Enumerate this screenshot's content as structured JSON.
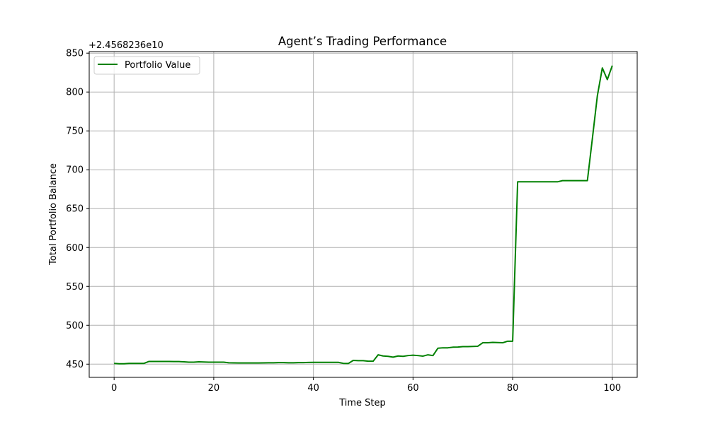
{
  "chart_data": {
    "type": "line",
    "title": "Agent’s Trading Performance",
    "xlabel": "Time Step",
    "ylabel": "Total Portfolio Balance",
    "y_offset_text": "+2.4568236e10",
    "xlim": [
      -5,
      105
    ],
    "ylim": [
      433,
      852
    ],
    "xticks": [
      0,
      20,
      40,
      60,
      80,
      100
    ],
    "yticks": [
      450,
      500,
      550,
      600,
      650,
      700,
      750,
      800,
      850
    ],
    "grid": true,
    "legend_position": "upper-left",
    "series": [
      {
        "name": "Portfolio Value",
        "color": "#008000",
        "x": [
          0,
          1,
          2,
          3,
          4,
          5,
          6,
          7,
          8,
          9,
          10,
          11,
          12,
          13,
          14,
          15,
          16,
          17,
          18,
          19,
          20,
          21,
          22,
          23,
          24,
          25,
          26,
          27,
          28,
          29,
          30,
          31,
          32,
          33,
          34,
          35,
          36,
          37,
          38,
          39,
          40,
          41,
          42,
          43,
          44,
          45,
          46,
          47,
          48,
          49,
          50,
          51,
          52,
          53,
          54,
          55,
          56,
          57,
          58,
          59,
          60,
          61,
          62,
          63,
          64,
          65,
          66,
          67,
          68,
          69,
          70,
          71,
          72,
          73,
          74,
          75,
          76,
          77,
          78,
          79,
          80,
          81,
          82,
          83,
          84,
          85,
          86,
          87,
          88,
          89,
          90,
          91,
          92,
          93,
          94,
          95,
          96,
          97,
          98,
          99,
          100
        ],
        "y": [
          451,
          450.5,
          450.5,
          451,
          451,
          451,
          451,
          453.5,
          453.5,
          453.5,
          453.5,
          453.5,
          453.3,
          453.3,
          453,
          452.5,
          452.5,
          453,
          452.8,
          452.5,
          452.5,
          452.5,
          452.5,
          451.8,
          451.6,
          451.5,
          451.5,
          451.5,
          451.5,
          451.5,
          451.6,
          451.7,
          451.7,
          452,
          452,
          451.8,
          451.8,
          452,
          452,
          452.2,
          452.3,
          452.3,
          452.3,
          452.3,
          452.3,
          452.3,
          451,
          450.8,
          454.8,
          454.5,
          454.5,
          453.8,
          453.8,
          462,
          460.5,
          460,
          459,
          460.5,
          460,
          461,
          461.5,
          461,
          460.3,
          462,
          461,
          470.5,
          471,
          471,
          471.8,
          472,
          472.5,
          472.5,
          472.8,
          473,
          477.5,
          477.5,
          478,
          477.8,
          477.5,
          479.5,
          479.5,
          684.5,
          684.5,
          684.5,
          684.5,
          684.5,
          684.5,
          684.5,
          684.5,
          684.5,
          686,
          686,
          686,
          686,
          686,
          686,
          740,
          795,
          831,
          816,
          834
        ]
      }
    ]
  }
}
